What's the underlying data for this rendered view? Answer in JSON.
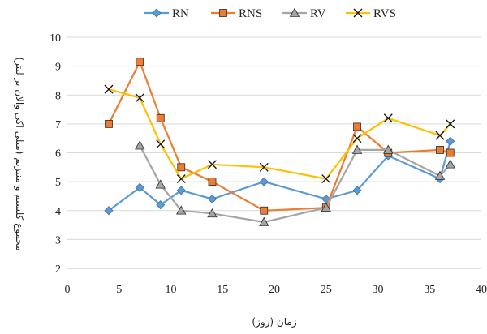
{
  "chart_data": {
    "type": "line",
    "title": "",
    "xlabel": "زمان (روز)",
    "ylabel": "مجموع کلسیم و منیزیم (میلی اکی والان بر لیتر)",
    "xlim": [
      0,
      40
    ],
    "ylim": [
      2,
      10
    ],
    "x_ticks": [
      0,
      5,
      10,
      15,
      20,
      25,
      30,
      35,
      40
    ],
    "y_ticks": [
      2,
      3,
      4,
      5,
      6,
      7,
      8,
      9,
      10
    ],
    "grid": "horizontal",
    "legend_position": "top",
    "series": [
      {
        "name": "RN",
        "color": "#5B9BD5",
        "marker": "diamond",
        "points": [
          [
            4,
            4.0
          ],
          [
            7,
            4.8
          ],
          [
            9,
            4.2
          ],
          [
            11,
            4.7
          ],
          [
            14,
            4.4
          ],
          [
            19,
            5.0
          ],
          [
            25,
            4.4
          ],
          [
            28,
            4.7
          ],
          [
            31,
            5.9
          ],
          [
            36,
            5.1
          ],
          [
            37,
            6.4
          ]
        ]
      },
      {
        "name": "RNS",
        "color": "#ED7D31",
        "marker": "square",
        "points": [
          [
            4,
            7.0
          ],
          [
            7,
            9.15
          ],
          [
            9,
            7.2
          ],
          [
            11,
            5.5
          ],
          [
            14,
            5.0
          ],
          [
            19,
            4.0
          ],
          [
            25,
            4.1
          ],
          [
            28,
            6.9
          ],
          [
            31,
            6.0
          ],
          [
            36,
            6.1
          ],
          [
            37,
            6.0
          ]
        ]
      },
      {
        "name": "RV",
        "color": "#A5A5A5",
        "marker": "triangle",
        "points": [
          [
            7,
            6.25
          ],
          [
            9,
            4.9
          ],
          [
            11,
            4.0
          ],
          [
            14,
            3.9
          ],
          [
            19,
            3.6
          ],
          [
            25,
            4.1
          ],
          [
            28,
            6.1
          ],
          [
            31,
            6.1
          ],
          [
            36,
            5.2
          ],
          [
            37,
            5.6
          ]
        ]
      },
      {
        "name": "RVS",
        "color": "#FFC000",
        "marker": "x",
        "points": [
          [
            4,
            8.2
          ],
          [
            7,
            7.9
          ],
          [
            9,
            6.3
          ],
          [
            11,
            5.1
          ],
          [
            14,
            5.6
          ],
          [
            19,
            5.5
          ],
          [
            25,
            5.1
          ],
          [
            28,
            6.5
          ],
          [
            31,
            7.2
          ],
          [
            36,
            6.6
          ],
          [
            37,
            7.0
          ]
        ]
      }
    ]
  }
}
